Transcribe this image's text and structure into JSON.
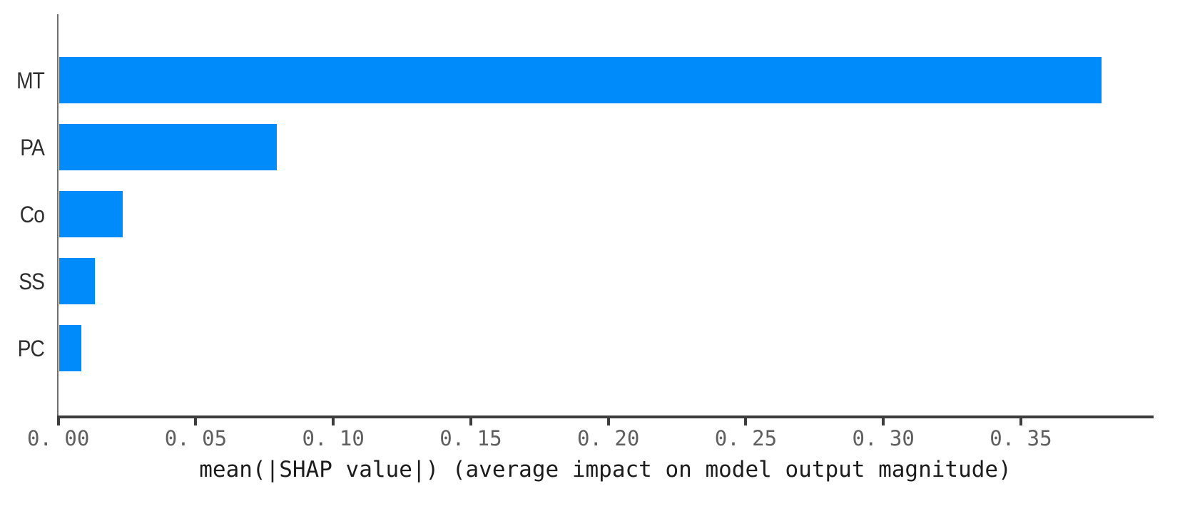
{
  "chart_data": {
    "type": "bar",
    "orientation": "horizontal",
    "title": "",
    "xlabel": "mean(|SHAP value|) (average impact on model output magnitude)",
    "ylabel": "",
    "categories": [
      "MT",
      "PA",
      "Co",
      "SS",
      "PC"
    ],
    "values": [
      0.379,
      0.079,
      0.023,
      0.013,
      0.008
    ],
    "xlim": [
      0,
      0.398
    ],
    "x_tick_values": [
      0.0,
      0.05,
      0.1,
      0.15,
      0.2,
      0.25,
      0.3,
      0.35
    ],
    "x_tick_labels": [
      "0. 00",
      "0. 05",
      "0. 10",
      "0. 15",
      "0. 20",
      "0. 25",
      "0. 30",
      "0. 35"
    ],
    "grid": false,
    "legend": null,
    "colors": {
      "bar": "#008bfb",
      "axis_line": "#3c3c3c",
      "spine": "#6f6f6f",
      "tick_label": "#5f5f5f",
      "category_label": "#2e2e2e",
      "axis_title": "#1c1c1c",
      "background": "#ffffff"
    }
  }
}
